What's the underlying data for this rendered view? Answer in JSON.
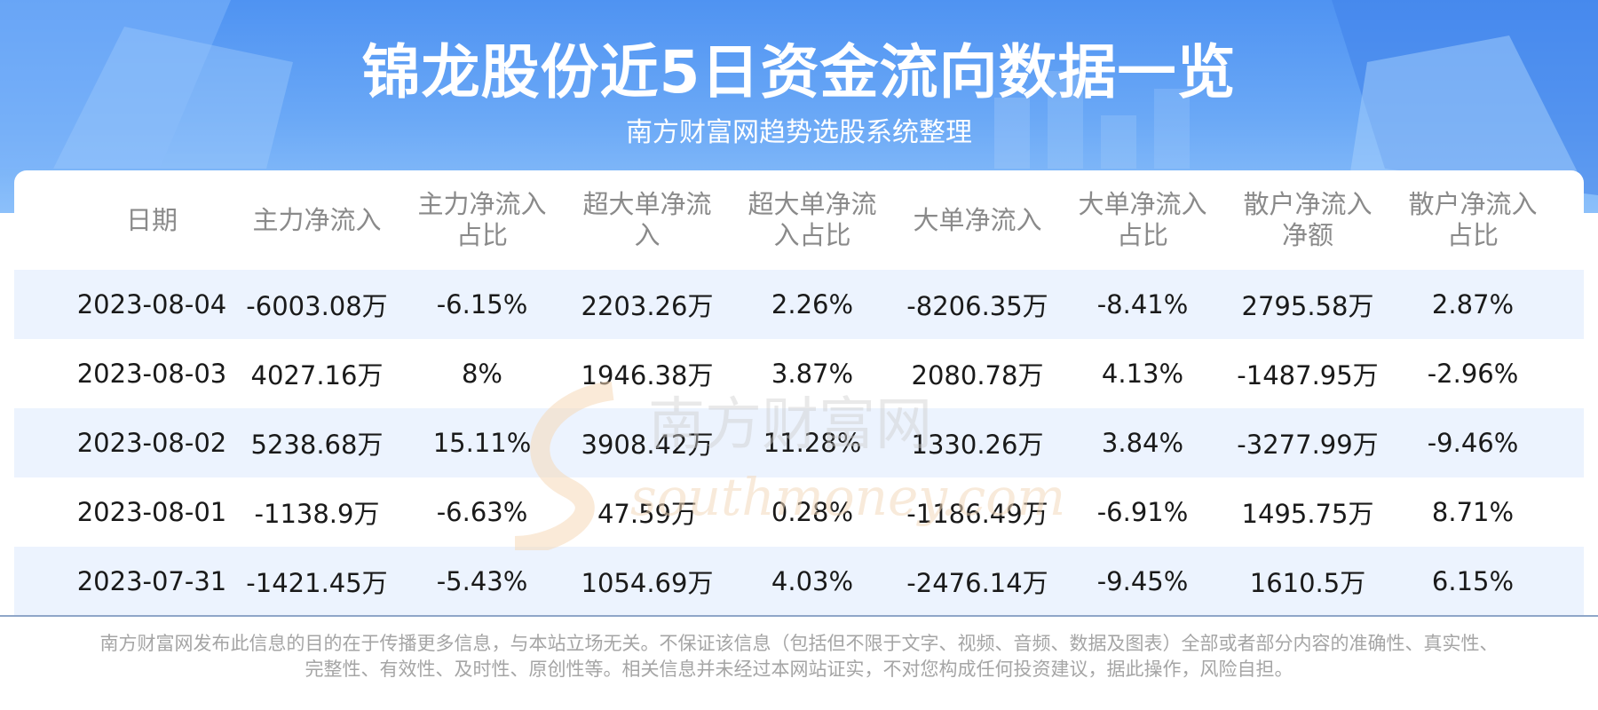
{
  "header": {
    "title": "锦龙股份近5日资金流向数据一览",
    "subtitle": "南方财富网趋势选股系统整理"
  },
  "colors": {
    "header_bg": "#5b9cf4",
    "row_alt_bg": "#ecf3fe",
    "header_text": "#8a8a8a",
    "cell_text": "#1a1a1a"
  },
  "watermark": {
    "cn": "南方财富网",
    "en": "southmoney.com"
  },
  "chart_data": {
    "type": "table",
    "columns": [
      [
        "日期"
      ],
      [
        "主力净流入"
      ],
      [
        "主力净流入",
        "占比"
      ],
      [
        "超大单净流",
        "入"
      ],
      [
        "超大单净流",
        "入占比"
      ],
      [
        "大单净流入"
      ],
      [
        "大单净流入",
        "占比"
      ],
      [
        "散户净流入",
        "净额"
      ],
      [
        "散户净流入",
        "占比"
      ]
    ],
    "rows": [
      [
        "2023-08-04",
        "-6003.08万",
        "-6.15%",
        "2203.26万",
        "2.26%",
        "-8206.35万",
        "-8.41%",
        "2795.58万",
        "2.87%"
      ],
      [
        "2023-08-03",
        "4027.16万",
        "8%",
        "1946.38万",
        "3.87%",
        "2080.78万",
        "4.13%",
        "-1487.95万",
        "-2.96%"
      ],
      [
        "2023-08-02",
        "5238.68万",
        "15.11%",
        "3908.42万",
        "11.28%",
        "1330.26万",
        "3.84%",
        "-3277.99万",
        "-9.46%"
      ],
      [
        "2023-08-01",
        "-1138.9万",
        "-6.63%",
        "47.59万",
        "0.28%",
        "-1186.49万",
        "-6.91%",
        "1495.75万",
        "8.71%"
      ],
      [
        "2023-07-31",
        "-1421.45万",
        "-5.43%",
        "1054.69万",
        "4.03%",
        "-2476.14万",
        "-9.45%",
        "1610.5万",
        "6.15%"
      ]
    ]
  },
  "footer": {
    "disclaimer_line1": "南方财富网发布此信息的目的在于传播更多信息，与本站立场无关。不保证该信息（包括但不限于文字、视频、音频、数据及图表）全部或者部分内容的准确性、真实性、",
    "disclaimer_line2": "完整性、有效性、及时性、原创性等。相关信息并未经过本网站证实，不对您构成任何投资建议，据此操作，风险自担。"
  }
}
